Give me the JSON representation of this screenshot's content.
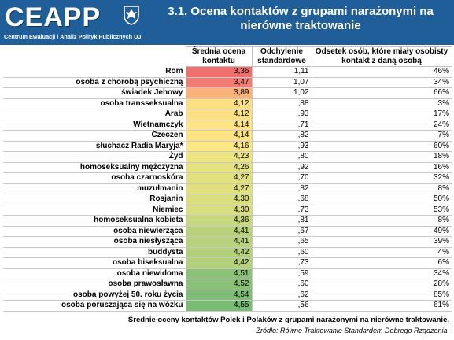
{
  "logo": {
    "word": "CEAPP",
    "subtitle": "Centrum Ewaluacji i Analiz Polityk Publicznych UJ",
    "emblem": "university-eagle-emblem"
  },
  "title": "3.1. Ocena kontaktów z grupami narażonymi na nierówne traktowanie",
  "columns": {
    "mean": "Średnia ocena kontaktu",
    "sd": "Odchylenie standardowe",
    "pct": "Odsetek osób, które miały osobisty kontakt z daną osobą"
  },
  "rows": [
    {
      "name": "Rom",
      "mean": "3,36",
      "sd": "1,11",
      "pct": "46%",
      "color": "#f07070"
    },
    {
      "name": "osoba z chorobą psychiczną",
      "mean": "3,47",
      "sd": "1,07",
      "pct": "34%",
      "color": "#f37b73"
    },
    {
      "name": "świadek Jehowy",
      "mean": "3,89",
      "sd": "1,02",
      "pct": "66%",
      "color": "#f8b27a"
    },
    {
      "name": "osoba transseksualna",
      "mean": "4,12",
      "sd": ",88",
      "pct": "3%",
      "color": "#fde084"
    },
    {
      "name": "Arab",
      "mean": "4,12",
      "sd": ",93",
      "pct": "17%",
      "color": "#fde084"
    },
    {
      "name": "Wietnamczyk",
      "mean": "4,14",
      "sd": ",71",
      "pct": "24%",
      "color": "#fde384"
    },
    {
      "name": "Czeczen",
      "mean": "4,14",
      "sd": ",82",
      "pct": "7%",
      "color": "#fde384"
    },
    {
      "name": "słuchacz Radia Maryja*",
      "mean": "4,16",
      "sd": ",93",
      "pct": "60%",
      "color": "#fbe785"
    },
    {
      "name": "Żyd",
      "mean": "4,23",
      "sd": ",80",
      "pct": "18%",
      "color": "#ede582"
    },
    {
      "name": "homoseksualny mężczyzna",
      "mean": "4,26",
      "sd": ",92",
      "pct": "16%",
      "color": "#e5e281"
    },
    {
      "name": "osoba czarnoskóra",
      "mean": "4,27",
      "sd": ",70",
      "pct": "32%",
      "color": "#e2e180"
    },
    {
      "name": "muzułmanin",
      "mean": "4,27",
      "sd": ",82",
      "pct": "8%",
      "color": "#e2e180"
    },
    {
      "name": "Rosjanin",
      "mean": "4,30",
      "sd": ",68",
      "pct": "50%",
      "color": "#d9de7f"
    },
    {
      "name": "Niemiec",
      "mean": "4,30",
      "sd": ",73",
      "pct": "53%",
      "color": "#d9de7f"
    },
    {
      "name": "homoseksualna kobieta",
      "mean": "4,36",
      "sd": ",81",
      "pct": "8%",
      "color": "#c8d87d"
    },
    {
      "name": "osoba niewierząca",
      "mean": "4,41",
      "sd": ",67",
      "pct": "49%",
      "color": "#b7d27b"
    },
    {
      "name": "osoba niesłysząca",
      "mean": "4,41",
      "sd": ",65",
      "pct": "39%",
      "color": "#b7d27b"
    },
    {
      "name": "buddysta",
      "mean": "4,42",
      "sd": ",60",
      "pct": "4%",
      "color": "#b3d17a"
    },
    {
      "name": "osoba biseksualna",
      "mean": "4,42",
      "sd": ",73",
      "pct": "6%",
      "color": "#b3d17a"
    },
    {
      "name": "osoba niewidoma",
      "mean": "4,51",
      "sd": ",59",
      "pct": "34%",
      "color": "#8cc277"
    },
    {
      "name": "osoba prawosławna",
      "mean": "4,52",
      "sd": ",60",
      "pct": "28%",
      "color": "#88c177"
    },
    {
      "name": "osoba powyżej 50. roku życia",
      "mean": "4,54",
      "sd": ",62",
      "pct": "85%",
      "color": "#7fbd76"
    },
    {
      "name": "osoba poruszająca się na wózku",
      "mean": "4,55",
      "sd": ",56",
      "pct": "61%",
      "color": "#7abb75"
    }
  ],
  "caption": "Średnie oceny kontaktów Polek i Polaków z grupami narażonymi na nierówne traktowanie.",
  "source": "Źródło: Równe Traktowanie Standardem Dobrego Rządzenia."
}
